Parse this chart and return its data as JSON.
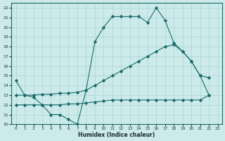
{
  "xlabel": "Humidex (Indice chaleur)",
  "background_color": "#cceaea",
  "grid_color": "#aad4d4",
  "line_color": "#1a6b6b",
  "xlim": [
    -0.5,
    23.5
  ],
  "ylim": [
    10,
    22.5
  ],
  "xticks": [
    0,
    1,
    2,
    3,
    4,
    5,
    6,
    7,
    8,
    9,
    10,
    11,
    12,
    13,
    14,
    15,
    16,
    17,
    18,
    19,
    20,
    21,
    22,
    23
  ],
  "yticks": [
    10,
    11,
    12,
    13,
    14,
    15,
    16,
    17,
    18,
    19,
    20,
    21,
    22
  ],
  "line1_x": [
    0,
    1,
    2,
    3,
    4,
    5,
    6,
    7,
    8,
    9,
    10,
    11,
    12,
    13,
    14,
    15,
    16,
    17,
    18,
    19,
    20,
    21,
    22
  ],
  "line1_y": [
    14.5,
    13,
    12.8,
    12,
    11,
    11,
    10.5,
    10,
    13.5,
    18.5,
    20,
    21.1,
    21.1,
    21.1,
    21.1,
    20.5,
    22,
    20.7,
    18.4,
    17.5,
    16.5,
    15,
    14.8
  ],
  "line2_x": [
    0,
    1,
    2,
    3,
    4,
    5,
    6,
    7,
    8,
    9,
    10,
    11,
    12,
    13,
    14,
    15,
    16,
    17,
    18,
    19,
    20,
    21,
    22
  ],
  "line2_y": [
    13,
    13,
    13,
    13.1,
    13.1,
    13.2,
    13.2,
    13.3,
    13.5,
    14,
    14.5,
    15,
    15.5,
    16,
    16.5,
    17,
    17.5,
    18,
    18.2,
    17.5,
    16.5,
    15,
    13
  ],
  "line3_x": [
    0,
    1,
    2,
    3,
    4,
    5,
    6,
    7,
    8,
    9,
    10,
    11,
    12,
    13,
    14,
    15,
    16,
    17,
    18,
    19,
    20,
    21,
    22
  ],
  "line3_y": [
    12,
    12,
    12,
    12,
    12,
    12,
    12.1,
    12.1,
    12.2,
    12.3,
    12.4,
    12.5,
    12.5,
    12.5,
    12.5,
    12.5,
    12.5,
    12.5,
    12.5,
    12.5,
    12.5,
    12.5,
    13
  ]
}
